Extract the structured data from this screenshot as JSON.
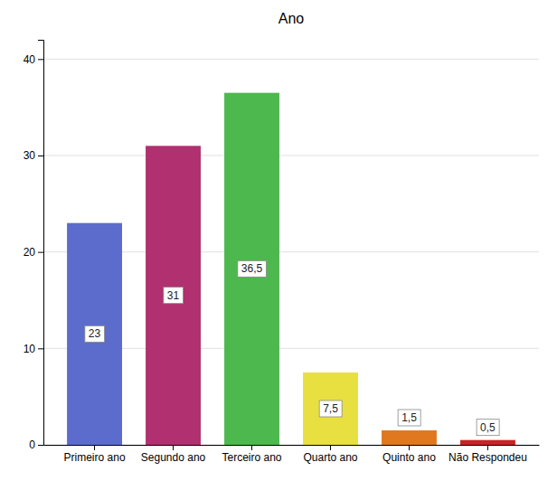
{
  "chart_data": {
    "type": "bar",
    "title": "Ano",
    "categories": [
      "Primeiro ano",
      "Segundo ano",
      "Terceiro ano",
      "Quarto ano",
      "Quinto ano",
      "Não Respondeu"
    ],
    "values": [
      23,
      31,
      36.5,
      7.5,
      1.5,
      0.5
    ],
    "value_labels": [
      "23",
      "31",
      "36,5",
      "7,5",
      "1,5",
      "0,5"
    ],
    "data_labels": true,
    "colors": [
      "#5b6ccc",
      "#b03070",
      "#4db84d",
      "#e8e040",
      "#e07820",
      "#cc2222"
    ],
    "ylim": [
      0,
      42
    ],
    "yticks": [
      0,
      10,
      20,
      30,
      40
    ],
    "grid": true
  }
}
